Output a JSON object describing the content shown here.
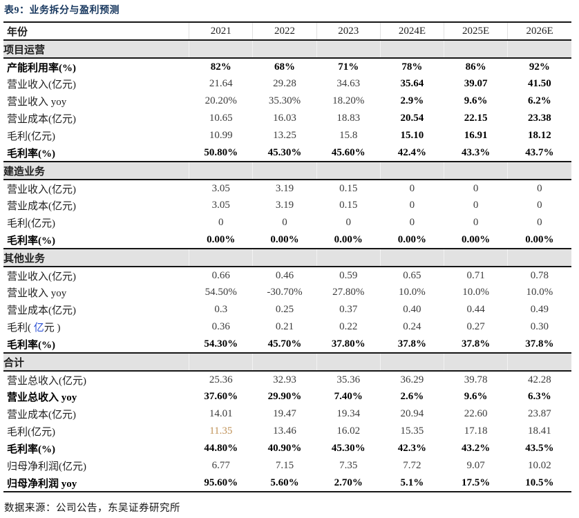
{
  "title": "表9：业务拆分与盈利预测",
  "footer": "数据来源：公司公告，东吴证券研究所",
  "colors": {
    "title_navy": "#17375e",
    "band_gray": "#e2e2e2",
    "accent_blue": "#2b50d4",
    "accent_gold": "#bf9156",
    "border_dark": "#151515"
  },
  "table": {
    "columns": [
      "年份",
      "2021",
      "2022",
      "2023",
      "2024E",
      "2025E",
      "2026E"
    ],
    "sections": [
      {
        "header": "项目运营",
        "rows": [
          {
            "label": "产能利用率(%)",
            "bold": true,
            "values": [
              "82%",
              "68%",
              "71%",
              "78%",
              "86%",
              "92%"
            ]
          },
          {
            "label": "营业收入(亿元)",
            "bold_forecast": true,
            "values": [
              "21.64",
              "29.28",
              "34.63",
              "35.64",
              "39.07",
              "41.50"
            ]
          },
          {
            "label": "营业收入 yoy",
            "bold_forecast": true,
            "values": [
              "20.20%",
              "35.30%",
              "18.20%",
              "2.9%",
              "9.6%",
              "6.2%"
            ]
          },
          {
            "label": "营业成本(亿元)",
            "bold_forecast": true,
            "values": [
              "10.65",
              "16.03",
              "18.83",
              "20.54",
              "22.15",
              "23.38"
            ]
          },
          {
            "label": "毛利(亿元)",
            "bold_forecast": true,
            "values": [
              "10.99",
              "13.25",
              "15.8",
              "15.10",
              "16.91",
              "18.12"
            ]
          },
          {
            "label": "毛利率(%)",
            "bold": true,
            "values": [
              "50.80%",
              "45.30%",
              "45.60%",
              "42.4%",
              "43.3%",
              "43.7%"
            ]
          }
        ]
      },
      {
        "header": "建造业务",
        "rows": [
          {
            "label": "营业收入(亿元)",
            "values": [
              "3.05",
              "3.19",
              "0.15",
              "0",
              "0",
              "0"
            ]
          },
          {
            "label": "营业成本(亿元)",
            "values": [
              "3.05",
              "3.19",
              "0.15",
              "0",
              "0",
              "0"
            ]
          },
          {
            "label": "毛利(亿元)",
            "values": [
              "0",
              "0",
              "0",
              "0",
              "0",
              "0"
            ]
          },
          {
            "label": "毛利率(%)",
            "bold": true,
            "values": [
              "0.00%",
              "0.00%",
              "0.00%",
              "0.00%",
              "0.00%",
              "0.00%"
            ]
          }
        ]
      },
      {
        "header": "其他业务",
        "rows": [
          {
            "label": "营业收入(亿元)",
            "values": [
              "0.66",
              "0.46",
              "0.59",
              "0.65",
              "0.71",
              "0.78"
            ]
          },
          {
            "label": "营业收入 yoy",
            "values": [
              "54.50%",
              "-30.70%",
              "27.80%",
              "10.0%",
              "10.0%",
              "10.0%"
            ]
          },
          {
            "label": "营业成本(亿元)",
            "values": [
              "0.3",
              "0.25",
              "0.37",
              "0.40",
              "0.44",
              "0.49"
            ]
          },
          {
            "label_parts": [
              {
                "text": "毛利( "
              },
              {
                "text": "亿",
                "color": "#2b50d4"
              },
              {
                "text": "元 )"
              }
            ],
            "values": [
              "0.36",
              "0.21",
              "0.22",
              "0.24",
              "0.27",
              "0.30"
            ]
          },
          {
            "label": "毛利率(%)",
            "bold": true,
            "values": [
              "54.30%",
              "45.70%",
              "37.80%",
              "37.8%",
              "37.8%",
              "37.8%"
            ]
          }
        ]
      },
      {
        "header": "合计",
        "rows": [
          {
            "label": "营业总收入(亿元)",
            "values": [
              "25.36",
              "32.93",
              "35.36",
              "36.29",
              "39.78",
              "42.28"
            ]
          },
          {
            "label": "营业总收入 yoy",
            "bold": true,
            "values": [
              "37.60%",
              "29.90%",
              "7.40%",
              "2.6%",
              "9.6%",
              "6.3%"
            ]
          },
          {
            "label": "营业成本(亿元)",
            "values": [
              "14.01",
              "19.47",
              "19.34",
              "20.94",
              "22.60",
              "23.87"
            ]
          },
          {
            "label": "毛利(亿元)",
            "values": [
              "11.35",
              "13.46",
              "16.02",
              "15.35",
              "17.18",
              "18.41"
            ],
            "value_colors": {
              "0": "#bf9156"
            }
          },
          {
            "label": "毛利率(%)",
            "bold": true,
            "values": [
              "44.80%",
              "40.90%",
              "45.30%",
              "42.3%",
              "43.2%",
              "43.5%"
            ]
          },
          {
            "label": "归母净利润(亿元)",
            "values": [
              "6.77",
              "7.15",
              "7.35",
              "7.72",
              "9.07",
              "10.02"
            ]
          },
          {
            "label": "归母净利润 yoy",
            "bold": true,
            "values": [
              "95.60%",
              "5.60%",
              "2.70%",
              "5.1%",
              "17.5%",
              "10.5%"
            ]
          }
        ]
      }
    ]
  }
}
